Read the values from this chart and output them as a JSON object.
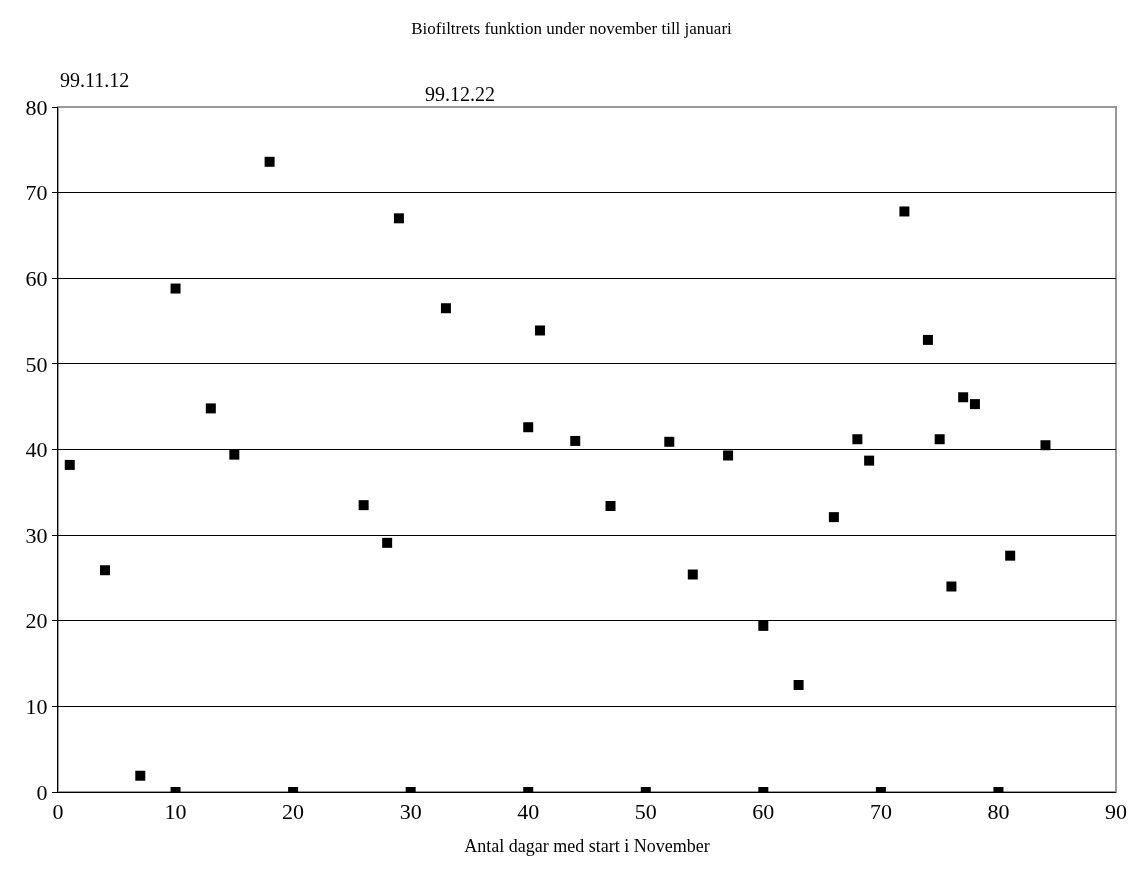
{
  "chart_data": {
    "type": "scatter",
    "title": "Biofiltrets funktion under november till januari",
    "xlabel": "Antal dagar med start i November",
    "annotations": [
      "99.11.12",
      "99.12.22"
    ],
    "x": [
      1,
      4,
      7,
      10,
      10,
      13,
      15,
      18,
      20,
      26,
      28,
      29,
      30,
      33,
      40,
      40,
      41,
      44,
      47,
      50,
      52,
      54,
      57,
      60,
      60,
      63,
      66,
      68,
      69,
      70,
      72,
      74,
      75,
      76,
      77,
      78,
      80,
      81,
      84
    ],
    "values": [
      38.2,
      25.9,
      1.9,
      58.8,
      0,
      44.8,
      39.4,
      73.6,
      0,
      33.5,
      29.1,
      67.0,
      0,
      56.5,
      42.6,
      0,
      53.9,
      41.0,
      33.4,
      0,
      40.9,
      25.4,
      39.3,
      19.4,
      0,
      12.5,
      32.1,
      41.2,
      38.7,
      0,
      67.8,
      52.8,
      41.2,
      24.0,
      46.1,
      45.3,
      0,
      27.6,
      40.5
    ],
    "color": "#000000",
    "marker": "square",
    "xlim": [
      0,
      90
    ],
    "xticks": [
      0,
      10,
      20,
      30,
      40,
      50,
      60,
      70,
      80,
      90
    ],
    "ylim": [
      0,
      80
    ],
    "yticks": [
      0,
      10,
      20,
      30,
      40,
      50,
      60,
      70,
      80
    ],
    "grid": "y"
  }
}
